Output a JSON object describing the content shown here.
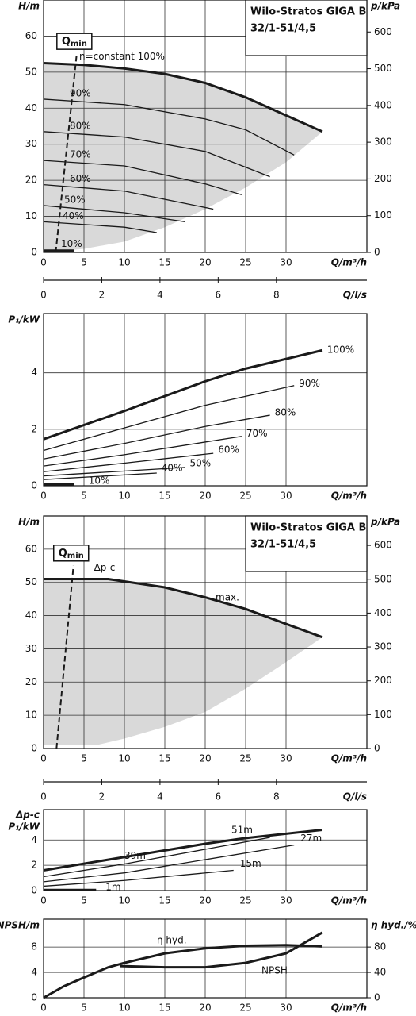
{
  "chart_data": [
    {
      "type": "line",
      "title": [
        "Wilo-Stratos GIGA B",
        "32/1-51/4,5"
      ],
      "xlabel": "Q/m³/h",
      "ylabel": "H/m",
      "y2label": "p/kPa",
      "x2label": "Q/l/s",
      "xlim": [
        0,
        40
      ],
      "xticks": [
        0,
        5,
        10,
        15,
        20,
        25,
        30
      ],
      "ylim": [
        0,
        70
      ],
      "yticks": [
        0,
        10,
        20,
        30,
        40,
        50,
        60
      ],
      "y2lim": [
        0,
        687
      ],
      "y2ticks": [
        0,
        100,
        200,
        300,
        400,
        500,
        600
      ],
      "x2lim": [
        0,
        11.11
      ],
      "x2ticks": [
        0,
        2,
        4,
        6,
        8
      ],
      "grid": true,
      "line_color": "#1a1a1a",
      "area_color": "#d9d9d9",
      "series": [
        {
          "name": "n=constant 100%",
          "width": 3,
          "x": [
            0,
            5,
            10,
            15,
            20,
            25,
            30,
            34.5
          ],
          "values": [
            52.5,
            52,
            51,
            49.5,
            47,
            43,
            38,
            33.5
          ]
        },
        {
          "name": "90%",
          "width": 1.3,
          "x": [
            0,
            10,
            20,
            25,
            31
          ],
          "values": [
            42.5,
            41,
            37,
            34,
            27
          ]
        },
        {
          "name": "80%",
          "width": 1.3,
          "x": [
            0,
            10,
            20,
            28
          ],
          "values": [
            33.5,
            32,
            28,
            21
          ]
        },
        {
          "name": "70%",
          "width": 1.3,
          "x": [
            0,
            10,
            20,
            24.5
          ],
          "values": [
            25.5,
            24,
            19,
            16
          ]
        },
        {
          "name": "60%",
          "width": 1.3,
          "x": [
            0,
            10,
            21
          ],
          "values": [
            18.8,
            17,
            12
          ]
        },
        {
          "name": "50%",
          "width": 1.3,
          "x": [
            0,
            10,
            17.5
          ],
          "values": [
            13,
            11,
            8.5
          ]
        },
        {
          "name": "40%",
          "width": 1.3,
          "x": [
            0,
            10,
            14
          ],
          "values": [
            8.5,
            7,
            5.5
          ]
        },
        {
          "name": "10%",
          "width": 3,
          "x": [
            0,
            3.8
          ],
          "values": [
            0.5,
            0.5
          ]
        }
      ],
      "area": {
        "x": [
          0,
          5,
          10,
          15,
          20,
          25,
          30,
          34.5
        ],
        "values": [
          0,
          1,
          3,
          7,
          12,
          18,
          25,
          33.5
        ]
      },
      "qmin": {
        "label": [
          "Q",
          "min"
        ],
        "x": [
          1.5,
          4.1
        ],
        "values": [
          0,
          55
        ]
      }
    },
    {
      "type": "line",
      "xlabel": "Q/m³/h",
      "ylabel": "P₁/kW",
      "xlim": [
        0,
        40
      ],
      "xticks": [
        0,
        5,
        10,
        15,
        20,
        25,
        30
      ],
      "ylim": [
        0,
        6.1
      ],
      "yticks": [
        0,
        2,
        4
      ],
      "grid": true,
      "line_color": "#1a1a1a",
      "series": [
        {
          "name": "100%",
          "width": 3,
          "x": [
            0,
            10,
            20,
            25,
            34.5
          ],
          "values": [
            1.65,
            2.65,
            3.7,
            4.15,
            4.8
          ]
        },
        {
          "name": "90%",
          "width": 1.3,
          "x": [
            0,
            10,
            20,
            31
          ],
          "values": [
            1.25,
            2.05,
            2.85,
            3.55
          ]
        },
        {
          "name": "80%",
          "width": 1.3,
          "x": [
            0,
            10,
            20,
            28
          ],
          "values": [
            0.95,
            1.5,
            2.1,
            2.5
          ]
        },
        {
          "name": "70%",
          "width": 1.3,
          "x": [
            0,
            10,
            24.5
          ],
          "values": [
            0.7,
            1.1,
            1.75
          ]
        },
        {
          "name": "60%",
          "width": 1.3,
          "x": [
            0,
            10,
            21
          ],
          "values": [
            0.5,
            0.8,
            1.15
          ]
        },
        {
          "name": "50%",
          "width": 1.3,
          "x": [
            0,
            17.5
          ],
          "values": [
            0.35,
            0.65
          ]
        },
        {
          "name": "40%",
          "width": 1.3,
          "x": [
            0,
            14
          ],
          "values": [
            0.22,
            0.45
          ]
        },
        {
          "name": "10%",
          "width": 3,
          "x": [
            0,
            3.8
          ],
          "values": [
            0.05,
            0.05
          ]
        }
      ]
    },
    {
      "type": "line",
      "title": [
        "Wilo-Stratos GIGA B",
        "32/1-51/4,5"
      ],
      "xlabel": "Q/m³/h",
      "ylabel": "H/m",
      "y2label": "p/kPa",
      "x2label": "Q/l/s",
      "xlim": [
        0,
        40
      ],
      "xticks": [
        0,
        5,
        10,
        15,
        20,
        25,
        30
      ],
      "ylim": [
        0,
        70
      ],
      "yticks": [
        0,
        10,
        20,
        30,
        40,
        50,
        60
      ],
      "y2lim": [
        0,
        687
      ],
      "y2ticks": [
        0,
        100,
        200,
        300,
        400,
        500,
        600
      ],
      "x2lim": [
        0,
        11.11
      ],
      "x2ticks": [
        0,
        2,
        4,
        6,
        8
      ],
      "grid": true,
      "line_color": "#1a1a1a",
      "area_color": "#d9d9d9",
      "annotations": [
        "Δp-c"
      ],
      "series": [
        {
          "name": "max.",
          "width": 3,
          "x": [
            0,
            8,
            15,
            20,
            25,
            30,
            34.5
          ],
          "values": [
            51,
            51,
            48.5,
            45.5,
            42,
            37.5,
            33.5
          ]
        }
      ],
      "area": {
        "x": [
          0,
          6.5,
          10,
          15,
          20,
          25,
          30,
          34.5
        ],
        "values": [
          1,
          1,
          3,
          6.5,
          11,
          18,
          26,
          33.5
        ]
      },
      "qmin": {
        "label": [
          "Q",
          "min"
        ],
        "x": [
          1.6,
          3.7
        ],
        "values": [
          0,
          55
        ]
      }
    },
    {
      "type": "line",
      "xlabel": "Q/m³/h",
      "ylabel": [
        "Δp-c",
        "P₁/kW"
      ],
      "xlim": [
        0,
        40
      ],
      "xticks": [
        0,
        5,
        10,
        15,
        20,
        25,
        30
      ],
      "ylim": [
        0,
        6.4
      ],
      "yticks": [
        0,
        2,
        4
      ],
      "grid": true,
      "line_color": "#1a1a1a",
      "series": [
        {
          "name": "51m",
          "width": 3,
          "x": [
            0,
            10,
            20,
            25,
            34.5
          ],
          "values": [
            1.6,
            2.65,
            3.7,
            4.15,
            4.8
          ]
        },
        {
          "name": "39m",
          "width": 1.3,
          "x": [
            0,
            10,
            28
          ],
          "values": [
            1.1,
            2.1,
            4.2
          ]
        },
        {
          "name": "27m",
          "width": 1.3,
          "x": [
            0,
            10,
            31
          ],
          "values": [
            0.7,
            1.4,
            3.6
          ]
        },
        {
          "name": "15m",
          "width": 1.3,
          "x": [
            0,
            10,
            23.5
          ],
          "values": [
            0.35,
            0.8,
            1.6
          ]
        },
        {
          "name": "1m",
          "width": 3,
          "x": [
            0,
            6.5
          ],
          "values": [
            0.05,
            0.05
          ]
        }
      ]
    },
    {
      "type": "line",
      "xlabel": "Q/m³/h",
      "ylabel": "NPSH/m",
      "y2label": "η hyd./%",
      "xlim": [
        0,
        40
      ],
      "xticks": [
        0,
        5,
        10,
        15,
        20,
        25,
        30
      ],
      "ylim": [
        0,
        12.4
      ],
      "yticks": [
        0,
        4,
        8
      ],
      "y2lim": [
        0,
        124
      ],
      "y2ticks": [
        0,
        40,
        80
      ],
      "grid": true,
      "line_color": "#1a1a1a",
      "series": [
        {
          "name": "η hyd.",
          "axis": "y2",
          "width": 3,
          "x": [
            0,
            2.5,
            5,
            8,
            10,
            15,
            20,
            25,
            30,
            34.5
          ],
          "values": [
            0,
            18,
            32,
            48,
            55,
            70,
            78,
            82,
            83,
            81
          ]
        },
        {
          "name": "NPSH",
          "width": 3,
          "x": [
            9.5,
            15,
            20,
            25,
            30,
            34.5
          ],
          "values": [
            5,
            4.8,
            4.8,
            5.5,
            7,
            10.3
          ]
        }
      ]
    }
  ]
}
